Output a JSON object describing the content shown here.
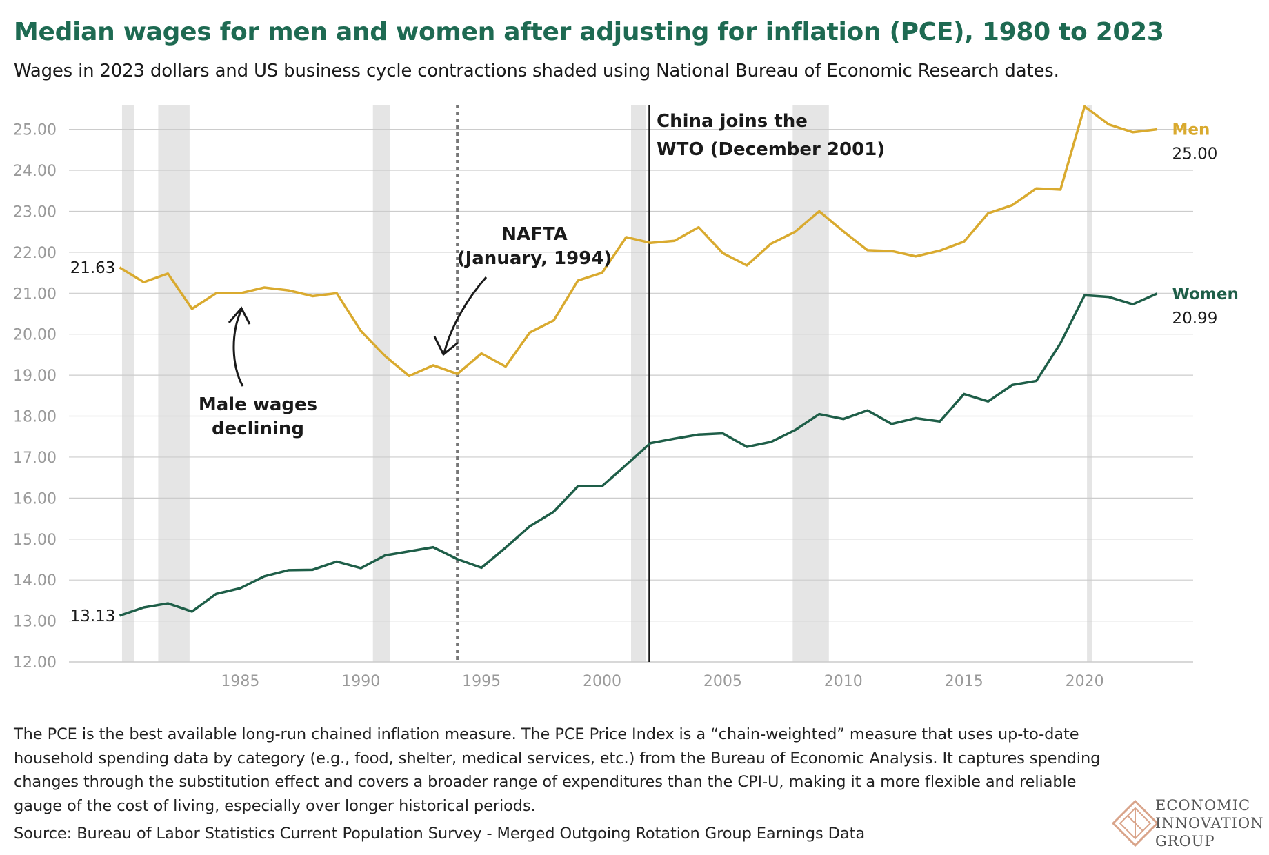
{
  "title": "Median wages for men and women after adjusting for inflation (PCE), 1980 to 2023",
  "subtitle": "Wages in 2023 dollars and US business cycle contractions shaded using National Bureau of Economic Research dates.",
  "footnote": "The PCE is the best available long-run chained inflation measure. The PCE Price Index is a “chain-weighted” measure that uses up-to-date household spending data by category (e.g., food, shelter, medical services, etc.) from the Bureau of Economic Analysis. It captures spending changes through the substitution effect and covers a broader range of expenditures than the CPI-U, making it a more flexible and reliable gauge of the cost of living, especially over longer historical periods.",
  "source": "Source: Bureau of Labor Statistics Current Population Survey - Merged Outgoing Rotation Group Earnings Data",
  "logo": {
    "line1": "ECONOMIC",
    "line2": "INNOVATION",
    "line3": "GROUP"
  },
  "colors": {
    "men": "#d9aa2f",
    "women": "#1e5e48",
    "title": "#1e6a52",
    "recession": "#e5e5e5",
    "grid": "#cccccc"
  },
  "chart_data": {
    "type": "line",
    "title": "Median wages for men and women after adjusting for inflation (PCE), 1980 to 2023",
    "xlim": [
      1977.9,
      2024.5
    ],
    "ylim": [
      12,
      25.6
    ],
    "y_ticks": [
      "12.00",
      "13.00",
      "14.00",
      "15.00",
      "16.00",
      "17.00",
      "18.00",
      "19.00",
      "20.00",
      "21.00",
      "22.00",
      "23.00",
      "24.00",
      "25.00"
    ],
    "x_ticks": [
      "1985",
      "1990",
      "1995",
      "2000",
      "2005",
      "2010",
      "2015",
      "2020"
    ],
    "recessions": [
      [
        1980.1,
        1980.6
      ],
      [
        1981.6,
        1982.9
      ],
      [
        1990.5,
        1991.2
      ],
      [
        2001.2,
        2001.8
      ],
      [
        2007.9,
        2009.4
      ],
      [
        2020.1,
        2020.3
      ]
    ],
    "x": [
      1980,
      1981,
      1982,
      1983,
      1984,
      1985,
      1986,
      1987,
      1988,
      1989,
      1990,
      1991,
      1992,
      1993,
      1994,
      1995,
      1996,
      1997,
      1998,
      1999,
      2000,
      2001,
      2002,
      2003,
      2004,
      2005,
      2006,
      2007,
      2008,
      2009,
      2010,
      2011,
      2012,
      2013,
      2014,
      2015,
      2016,
      2017,
      2018,
      2019,
      2020,
      2021,
      2022,
      2023
    ],
    "series": [
      {
        "name": "Men",
        "end_label": "25.00",
        "start_label": "21.63",
        "values": [
          21.63,
          21.27,
          21.48,
          20.62,
          21.0,
          21.0,
          21.14,
          21.07,
          20.93,
          21.0,
          20.08,
          19.47,
          18.98,
          19.24,
          19.03,
          19.53,
          19.21,
          20.04,
          20.34,
          21.31,
          21.5,
          22.37,
          22.23,
          22.28,
          22.61,
          21.98,
          21.68,
          22.21,
          22.5,
          23.0,
          22.51,
          22.05,
          22.03,
          21.9,
          22.04,
          22.26,
          22.95,
          23.15,
          23.56,
          23.53,
          25.56,
          25.12,
          24.93,
          25.0
        ]
      },
      {
        "name": "Women",
        "end_label": "20.99",
        "start_label": "13.13",
        "values": [
          13.13,
          13.33,
          13.43,
          13.23,
          13.66,
          13.8,
          14.09,
          14.24,
          14.25,
          14.45,
          14.29,
          14.6,
          14.7,
          14.8,
          14.51,
          14.3,
          14.79,
          15.31,
          15.67,
          16.29,
          16.29,
          16.81,
          17.34,
          17.45,
          17.55,
          17.58,
          17.25,
          17.37,
          17.66,
          18.05,
          17.93,
          18.14,
          17.81,
          17.95,
          17.87,
          18.54,
          18.36,
          18.76,
          18.86,
          19.78,
          20.95,
          20.91,
          20.73,
          20.99
        ]
      }
    ],
    "annotations": {
      "nafta": {
        "line1": "NAFTA",
        "line2": "(January, 1994)",
        "x": 1994.0
      },
      "wto": {
        "line1": "China joins the",
        "line2": "WTO (December 2001)",
        "x": 2001.95
      },
      "male": {
        "line1": "Male wages",
        "line2": "declining"
      }
    },
    "grid": true,
    "legend": "end-of-line labels"
  }
}
